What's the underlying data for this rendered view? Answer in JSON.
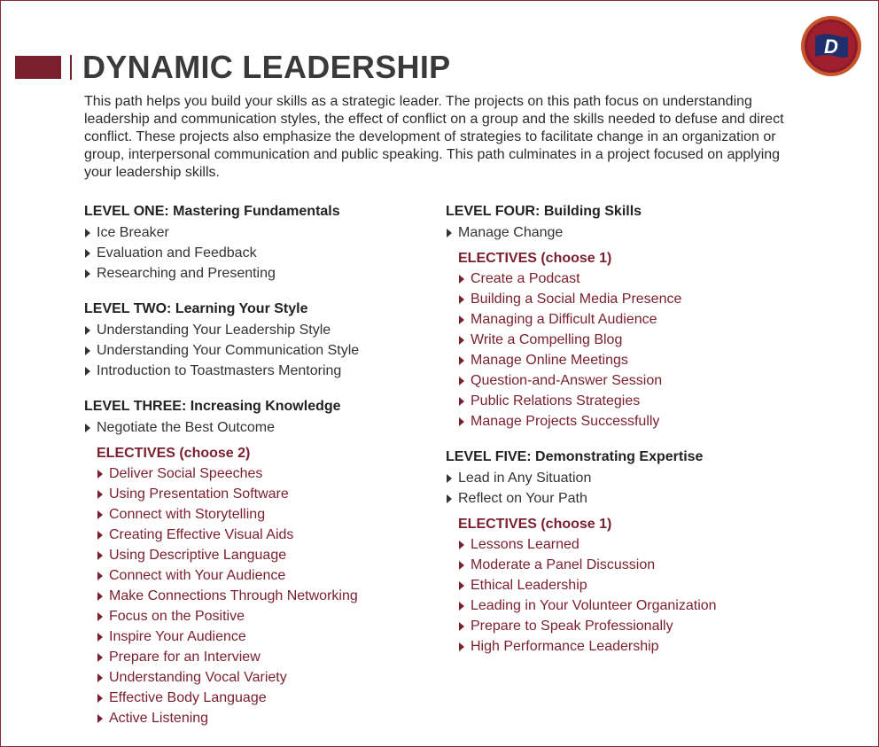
{
  "header": {
    "title": "DYNAMIC LEADERSHIP",
    "logo_letter": "D",
    "colors": {
      "accent": "#7a1f2e",
      "logo_ring": "#c8552a",
      "logo_flag": "#1f2f6e"
    }
  },
  "intro": "This path helps you build your skills as a strategic leader. The projects on this path focus on understanding leadership and communication styles, the effect of conflict on a group and the skills needed to defuse and direct conflict. These projects also emphasize the development of strategies to facilitate change in an organization or group, interpersonal communication and public speaking. This path culminates in a project focused on applying your leadership skills.",
  "levels": {
    "one": {
      "title": "LEVEL ONE: Mastering Fundamentals",
      "projects": [
        "Ice Breaker",
        "Evaluation and Feedback",
        "Researching and Presenting"
      ]
    },
    "two": {
      "title": "LEVEL TWO: Learning Your Style",
      "projects": [
        "Understanding Your Leadership Style",
        "Understanding Your Communication Style",
        "Introduction to Toastmasters Mentoring"
      ]
    },
    "three": {
      "title": "LEVEL THREE: Increasing Knowledge",
      "projects": [
        "Negotiate the Best Outcome"
      ],
      "electives_title": "ELECTIVES (choose 2)",
      "electives": [
        "Deliver Social Speeches",
        "Using Presentation Software",
        "Connect with Storytelling",
        "Creating Effective Visual Aids",
        "Using Descriptive Language",
        "Connect with Your Audience",
        "Make Connections Through Networking",
        "Focus on the Positive",
        "Inspire Your Audience",
        "Prepare for an Interview",
        "Understanding Vocal Variety",
        "Effective Body Language",
        "Active Listening"
      ]
    },
    "four": {
      "title": "LEVEL FOUR: Building Skills",
      "projects": [
        "Manage Change"
      ],
      "electives_title": "ELECTIVES (choose 1)",
      "electives": [
        "Create a Podcast",
        "Building a Social Media Presence",
        "Managing a Difficult Audience",
        "Write a Compelling Blog",
        "Manage Online Meetings",
        "Question-and-Answer Session",
        "Public Relations Strategies",
        "Manage Projects Successfully"
      ]
    },
    "five": {
      "title": "LEVEL FIVE: Demonstrating Expertise",
      "projects": [
        "Lead in Any Situation",
        "Reflect on Your Path"
      ],
      "electives_title": "ELECTIVES (choose 1)",
      "electives": [
        "Lessons Learned",
        "Moderate a Panel Discussion",
        "Ethical Leadership",
        "Leading in Your Volunteer Organization",
        "Prepare to Speak Professionally",
        "High Performance Leadership"
      ]
    }
  }
}
